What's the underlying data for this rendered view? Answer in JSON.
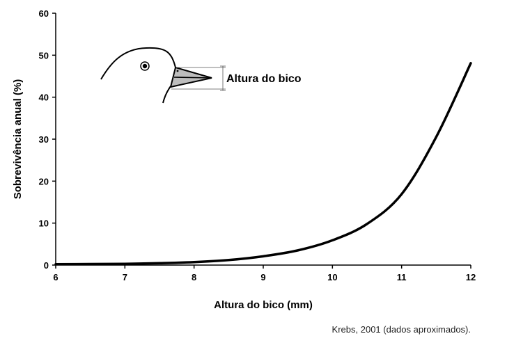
{
  "chart_data": {
    "type": "line",
    "xlabel": "Altura do bico (mm)",
    "ylabel": "Sobrevivência anual (%)",
    "xlim": [
      6,
      12
    ],
    "ylim": [
      0,
      60
    ],
    "x_ticks": [
      "6",
      "7",
      "8",
      "9",
      "10",
      "11",
      "12"
    ],
    "y_ticks": [
      "0",
      "10",
      "20",
      "30",
      "40",
      "50",
      "60"
    ],
    "grid": false,
    "legend": "none",
    "series": [
      {
        "x": [
          6,
          6.5,
          7,
          7.5,
          8,
          8.5,
          9,
          9.5,
          10,
          10.5,
          11,
          11.5,
          12
        ],
        "y": [
          0.2,
          0.25,
          0.3,
          0.45,
          0.7,
          1.2,
          2.1,
          3.5,
          5.9,
          9.8,
          16.9,
          30.5,
          48.1
        ]
      }
    ],
    "annotation": "Altura do bico",
    "source": "Krebs, 2001 (dados aproximados).",
    "colors": {
      "line": "#000000",
      "beak_fill": "#bdbdbd"
    }
  }
}
